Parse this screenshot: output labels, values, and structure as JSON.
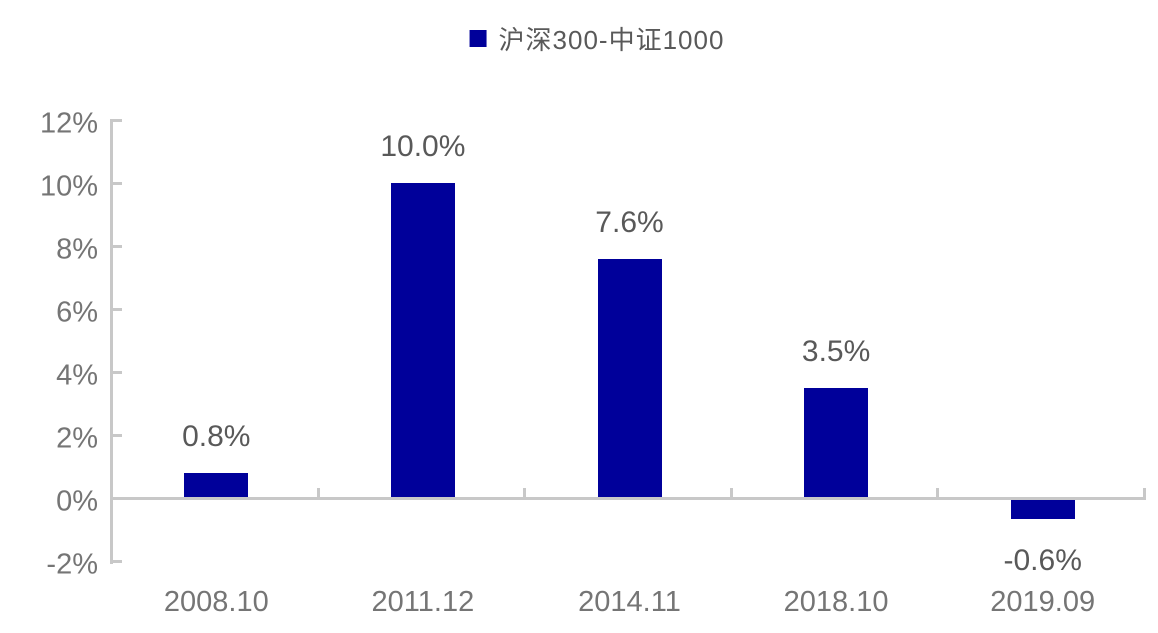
{
  "chart_data": {
    "type": "bar",
    "legend": "沪深300-中证1000",
    "categories": [
      "2008.10",
      "2011.12",
      "2014.11",
      "2018.10",
      "2019.09"
    ],
    "values": [
      0.8,
      10.0,
      7.6,
      3.5,
      -0.6
    ],
    "value_labels": [
      "0.8%",
      "10.0%",
      "7.6%",
      "3.5%",
      "-0.6%"
    ],
    "y_tick_labels": [
      "12%",
      "10%",
      "8%",
      "6%",
      "4%",
      "2%",
      "0%",
      "-2%"
    ],
    "y_tick_values": [
      12,
      10,
      8,
      6,
      4,
      2,
      0,
      -2
    ],
    "ylim": [
      -2,
      12
    ],
    "y_step": 2,
    "grid": false,
    "legend_position": "top-center",
    "colors": {
      "bar": "#00009A",
      "axis_line": "#C8C8C8",
      "axis_label": "#757575",
      "data_label": "#595959",
      "legend_text": "#595959"
    }
  }
}
